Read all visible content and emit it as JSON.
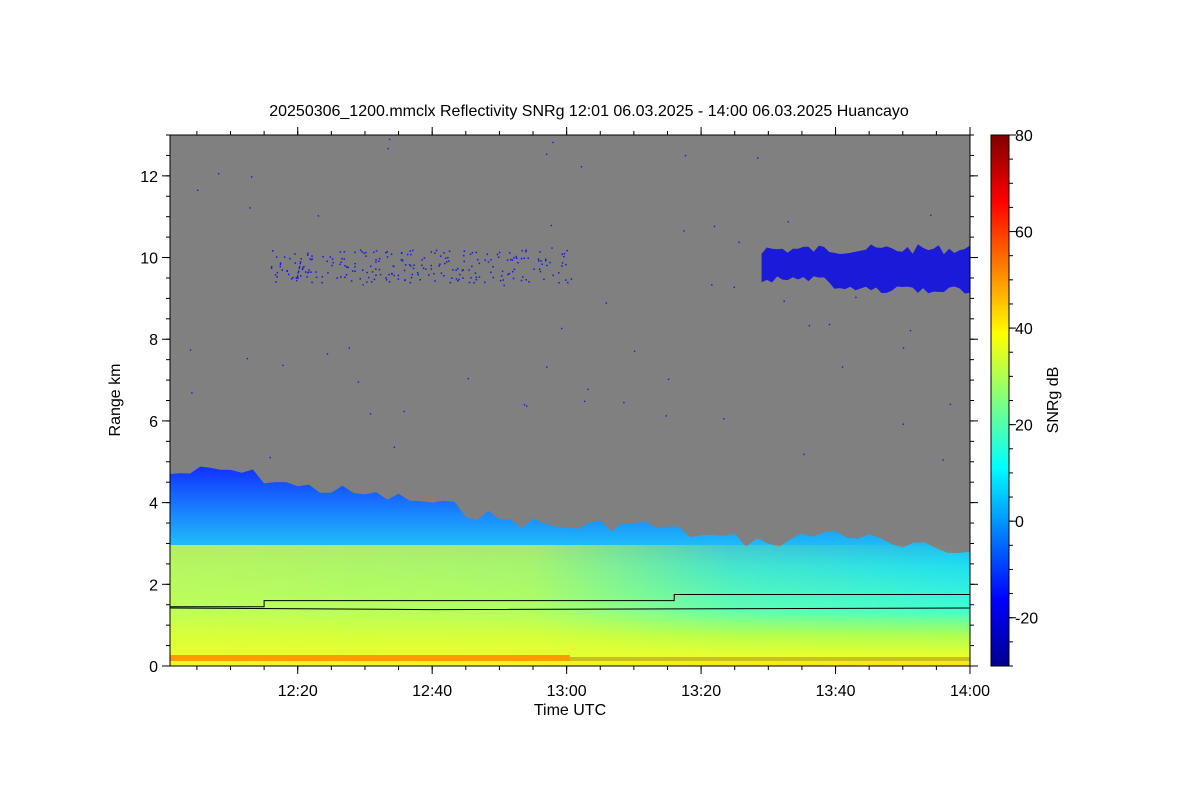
{
  "chart_data": {
    "type": "heatmap",
    "title": "20250306_1200.mmclx Reflectivity SNRg   12:01 06.03.2025 - 14:00 06.03.2025 Huancayo",
    "xlabel": "Time UTC",
    "ylabel": "Range km",
    "colorbar_label": "SNRg dB",
    "x_range": [
      "12:01",
      "14:00"
    ],
    "x_tick_labels": [
      "12:20",
      "12:40",
      "13:00",
      "13:20",
      "13:40",
      "14:00"
    ],
    "y_range_km": [
      0,
      13
    ],
    "y_tick_values": [
      0,
      2,
      4,
      6,
      8,
      10,
      12
    ],
    "colorbar_range_db": [
      -30,
      80
    ],
    "colorbar_tick_values": [
      -20,
      0,
      20,
      40,
      60,
      80
    ],
    "colormap": "jet",
    "no_signal_color": "#808080",
    "echo_top_km": [
      {
        "time": "12:01",
        "top": 4.7
      },
      {
        "time": "12:10",
        "top": 4.8
      },
      {
        "time": "12:20",
        "top": 4.4
      },
      {
        "time": "12:30",
        "top": 4.2
      },
      {
        "time": "12:40",
        "top": 4.0
      },
      {
        "time": "12:50",
        "top": 3.6
      },
      {
        "time": "13:00",
        "top": 3.4
      },
      {
        "time": "13:10",
        "top": 3.5
      },
      {
        "time": "13:20",
        "top": 3.2
      },
      {
        "time": "13:30",
        "top": 3.0
      },
      {
        "time": "13:40",
        "top": 3.3
      },
      {
        "time": "13:50",
        "top": 2.9
      },
      {
        "time": "14:00",
        "top": 2.8
      }
    ],
    "upper_cloud_layer": {
      "time_start": "13:29",
      "time_end": "14:00",
      "base_km": 9.1,
      "top_km": 10.3
    },
    "line_series": [
      {
        "values": [
          {
            "time": "12:01",
            "range": 1.45
          },
          {
            "time": "12:15",
            "range": 1.45
          },
          {
            "time": "12:15",
            "range": 1.6
          },
          {
            "time": "13:16",
            "range": 1.6
          },
          {
            "time": "13:16",
            "range": 1.75
          },
          {
            "time": "14:00",
            "range": 1.75
          }
        ]
      },
      {
        "values": [
          {
            "time": "12:01",
            "range": 1.42
          },
          {
            "time": "12:40",
            "range": 1.38
          },
          {
            "time": "14:00",
            "range": 1.42
          }
        ]
      }
    ]
  }
}
